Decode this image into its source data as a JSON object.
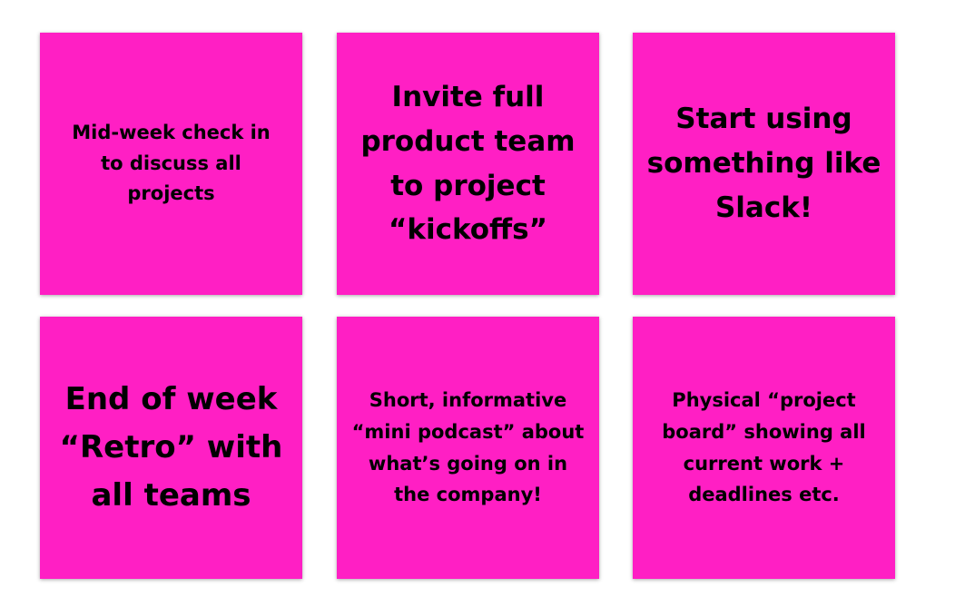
{
  "colors": {
    "note_background": "#ff1fc4",
    "note_text": "#000000",
    "page_background": "#ffffff"
  },
  "notes": [
    {
      "text": "Mid-week check in\nto discuss all\nprojects"
    },
    {
      "text": "Invite full\nproduct team\nto project\n“kickoffs”"
    },
    {
      "text": "Start using\nsomething like\nSlack!"
    },
    {
      "text": "End of week\n“Retro” with\nall teams"
    },
    {
      "text": "Short, informative\n“mini podcast” about\nwhat’s going on in\nthe company!"
    },
    {
      "text": "Physical “project\nboard” showing all\ncurrent work +\ndeadlines etc."
    }
  ]
}
